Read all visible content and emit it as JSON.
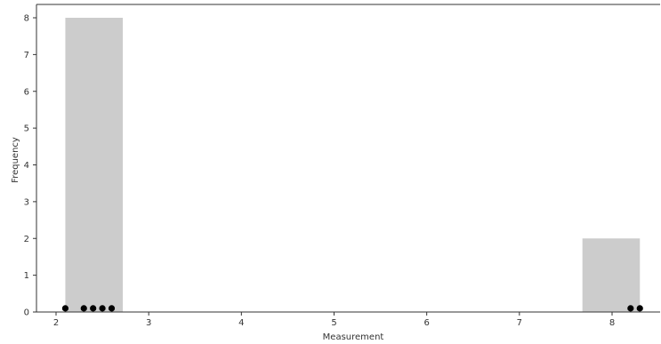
{
  "chart_data": {
    "type": "histogram",
    "xlabel": "Measurement",
    "ylabel": "Frequency",
    "xlim": [
      1.8,
      8.5
    ],
    "ylim": [
      0,
      8.4
    ],
    "xticks": [
      2,
      3,
      4,
      5,
      6,
      7,
      8
    ],
    "yticks": [
      0,
      1,
      2,
      3,
      4,
      5,
      6,
      7,
      8
    ],
    "bins": [
      {
        "start": 2.1,
        "end": 2.72,
        "count": 8
      },
      {
        "start": 2.72,
        "end": 3.34,
        "count": 0
      },
      {
        "start": 3.34,
        "end": 3.96,
        "count": 0
      },
      {
        "start": 3.96,
        "end": 4.58,
        "count": 0
      },
      {
        "start": 4.58,
        "end": 5.2,
        "count": 0
      },
      {
        "start": 5.2,
        "end": 5.82,
        "count": 0
      },
      {
        "start": 5.82,
        "end": 6.44,
        "count": 0
      },
      {
        "start": 6.44,
        "end": 7.06,
        "count": 0
      },
      {
        "start": 7.06,
        "end": 7.68,
        "count": 0
      },
      {
        "start": 7.68,
        "end": 8.3,
        "count": 2
      }
    ],
    "points": [
      {
        "x": 2.1,
        "y": 0.1
      },
      {
        "x": 2.3,
        "y": 0.1
      },
      {
        "x": 2.4,
        "y": 0.1
      },
      {
        "x": 2.5,
        "y": 0.1
      },
      {
        "x": 2.6,
        "y": 0.1
      },
      {
        "x": 8.2,
        "y": 0.1
      },
      {
        "x": 8.3,
        "y": 0.1
      }
    ],
    "bar_color": "#cccccc",
    "point_color": "#000000",
    "grid": false
  }
}
